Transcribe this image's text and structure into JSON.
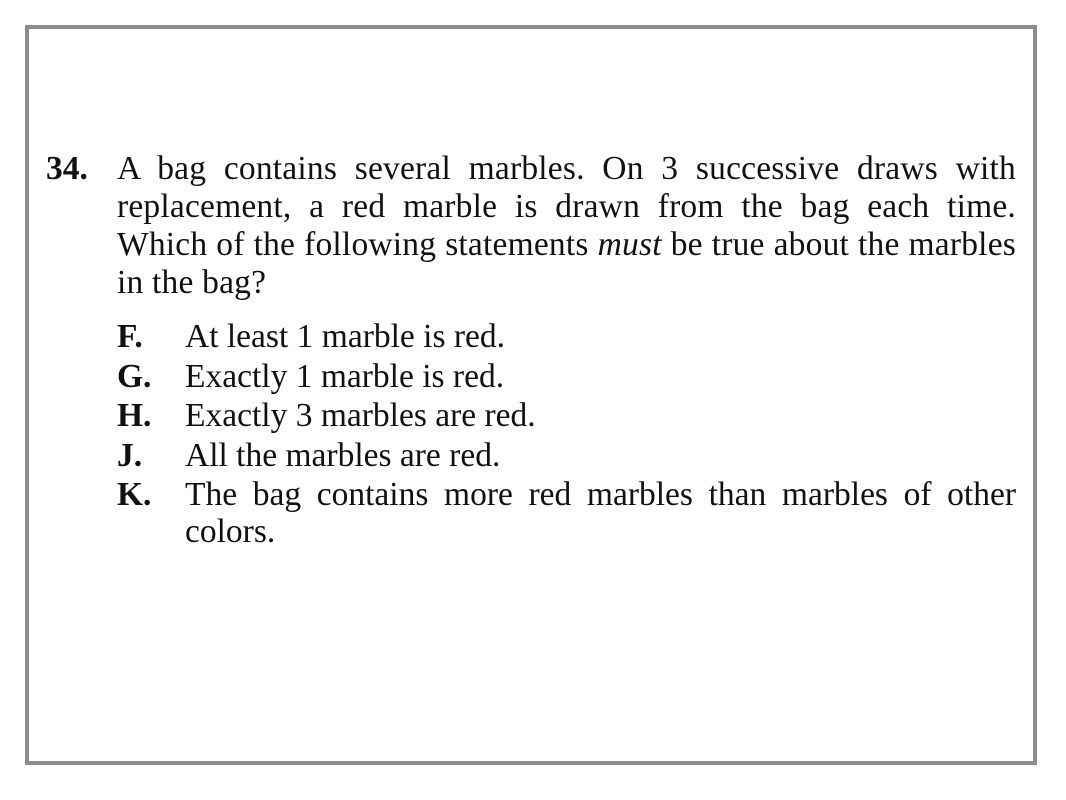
{
  "question": {
    "number": "34.",
    "stem_before_em": "A bag contains several marbles. On 3 successive draws with replacement, a red marble is drawn from the bag each time. Which of the following statements ",
    "stem_em": "must",
    "stem_after_em": " be true about the marbles in the bag?",
    "choices": [
      {
        "letter": "F.",
        "text": "At least 1 marble is red."
      },
      {
        "letter": "G.",
        "text": "Exactly 1 marble is red."
      },
      {
        "letter": "H.",
        "text": "Exactly 3 marbles are red."
      },
      {
        "letter": "J.",
        "text": "All the marbles are red."
      },
      {
        "letter": "K.",
        "text": "The bag contains more red marbles than marbles of other colors."
      }
    ]
  },
  "colors": {
    "border": "#8c8c8c",
    "text": "#111111",
    "background": "#ffffff"
  }
}
